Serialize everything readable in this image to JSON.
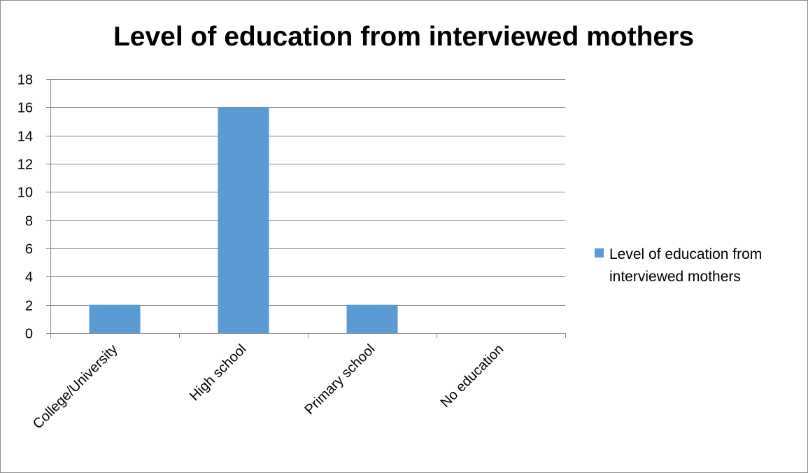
{
  "chart_data": {
    "type": "bar",
    "title": "Level of education from interviewed mothers",
    "categories": [
      "College/University",
      "High school",
      "Primary school",
      "No education"
    ],
    "series": [
      {
        "name": "Level of education from interviewed mothers",
        "values": [
          2,
          16,
          2,
          0
        ],
        "color": "#5b9bd5"
      }
    ],
    "xlabel": "",
    "ylabel": "",
    "ylim": [
      0,
      18
    ],
    "yticks": [
      0,
      2,
      4,
      6,
      8,
      10,
      12,
      14,
      16,
      18
    ],
    "grid": true,
    "legend_position": "right",
    "legend_lines": [
      "Level of education from",
      "interviewed mothers"
    ]
  }
}
